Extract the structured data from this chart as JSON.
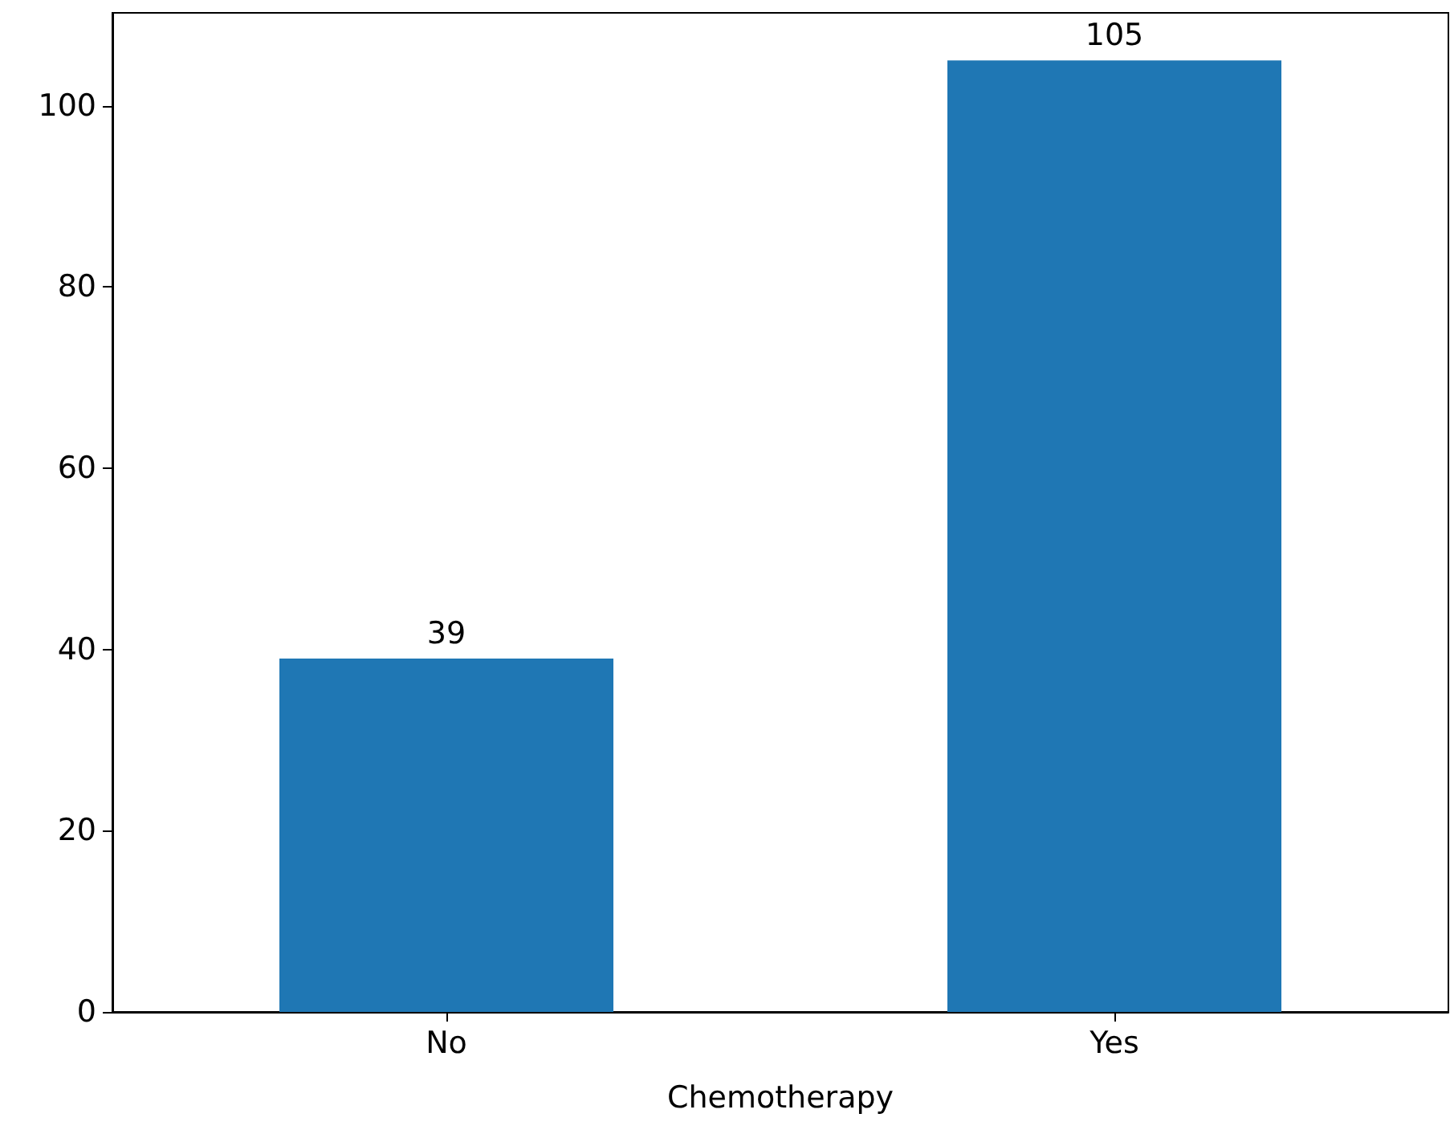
{
  "chart_data": {
    "type": "bar",
    "xlabel": "Chemotherapy",
    "categories": [
      "No",
      "Yes"
    ],
    "values": [
      39,
      105
    ],
    "color": "#1f77b4",
    "ylim": [
      0,
      110.25
    ],
    "yticks": [
      0,
      20,
      40,
      60,
      80,
      100
    ],
    "grid": false,
    "data_labels": true
  }
}
